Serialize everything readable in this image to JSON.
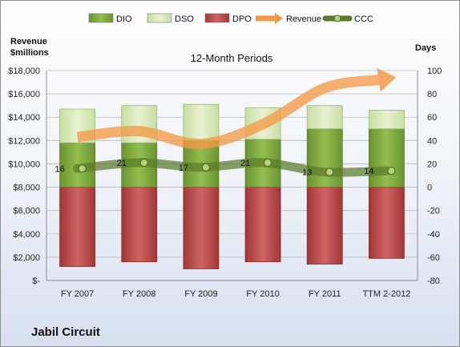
{
  "chart_data": {
    "type": "bar",
    "subtitle": "12-Month Periods",
    "footer": "Jabil Circuit",
    "y_left_label": [
      "Revenue",
      "$millions"
    ],
    "y_right_label": "Days",
    "categories": [
      "FY 2007",
      "FY 2008",
      "FY 2009",
      "FY 2010",
      "FY 2011",
      "TTM 2-2012"
    ],
    "y_left": {
      "min": 0,
      "max": 18000,
      "step": 2000,
      "tick_labels": [
        "$-",
        "$2,000",
        "$4,000",
        "$6,000",
        "$8,000",
        "$10,000",
        "$12,000",
        "$14,000",
        "$16,000",
        "$18,000"
      ]
    },
    "y_right": {
      "min": -80,
      "max": 100,
      "step": 20
    },
    "grid": "horizontal",
    "legend_position": "top",
    "legend": [
      "DIO",
      "DSO",
      "DPO",
      "Revenue",
      "CCC"
    ],
    "series": [
      {
        "name": "DIO",
        "type": "bar",
        "axis": "right",
        "values": [
          38,
          38,
          40,
          41,
          50,
          50
        ],
        "color": "#7faa3c"
      },
      {
        "name": "DSO",
        "type": "bar",
        "axis": "right",
        "values": [
          29,
          32,
          31,
          27,
          20,
          16
        ],
        "color": "#d5e7b2"
      },
      {
        "name": "DPO",
        "type": "bar",
        "axis": "right",
        "values": [
          -68,
          -64,
          -70,
          -64,
          -66,
          -61
        ],
        "color": "#b84a4a"
      },
      {
        "name": "Revenue",
        "type": "line",
        "axis": "left",
        "values": [
          12300,
          12800,
          11700,
          13400,
          16500,
          17300
        ],
        "color": "#f39a48"
      },
      {
        "name": "CCC",
        "type": "line",
        "axis": "right",
        "values": [
          16,
          21,
          17,
          21,
          13,
          14
        ],
        "color": "#5b7a2a"
      }
    ]
  }
}
